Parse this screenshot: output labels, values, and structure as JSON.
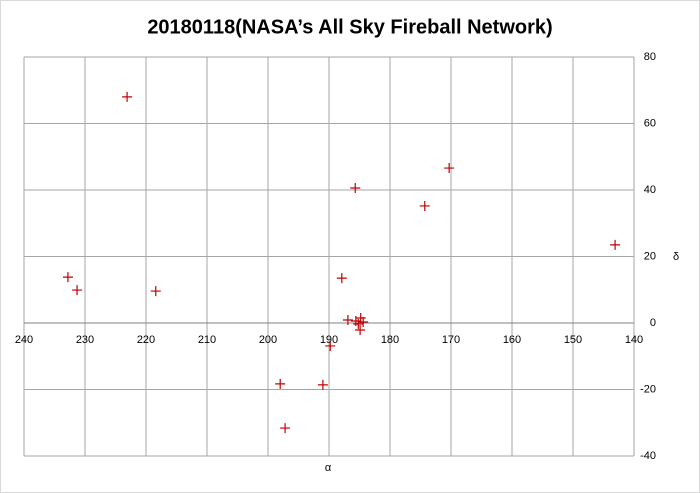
{
  "chart_data": {
    "type": "scatter",
    "title": "20180118(NASA’s All Sky Fireball Network)",
    "x_label": "α",
    "y_label": "δ",
    "series": [
      {
        "color": "#c00000",
        "x": [
          223.1,
          232.8,
          231.3,
          218.4,
          198,
          197.2,
          191,
          189.8,
          185.7,
          187.9,
          186.9,
          185.6,
          185.2,
          184.8,
          184.4,
          184.9,
          174.3,
          170.3,
          143.1
        ],
        "values": [
          68,
          13.8,
          9.9,
          9.6,
          -18.3,
          -31.6,
          -18.6,
          -6.9,
          40.6,
          13.5,
          0.9,
          0.6,
          -0.3,
          1.5,
          0.3,
          -2.1,
          35.2,
          46.6,
          23.5
        ]
      }
    ],
    "xlim": [
      240,
      140
    ],
    "xticks": [
      240,
      230,
      220,
      210,
      200,
      190,
      180,
      170,
      160,
      150,
      140
    ],
    "ylim": [
      -40,
      80
    ],
    "yticks": [
      -40,
      -20,
      0,
      20,
      40,
      60,
      80
    ],
    "grid": true,
    "y_axis_side": "right"
  }
}
